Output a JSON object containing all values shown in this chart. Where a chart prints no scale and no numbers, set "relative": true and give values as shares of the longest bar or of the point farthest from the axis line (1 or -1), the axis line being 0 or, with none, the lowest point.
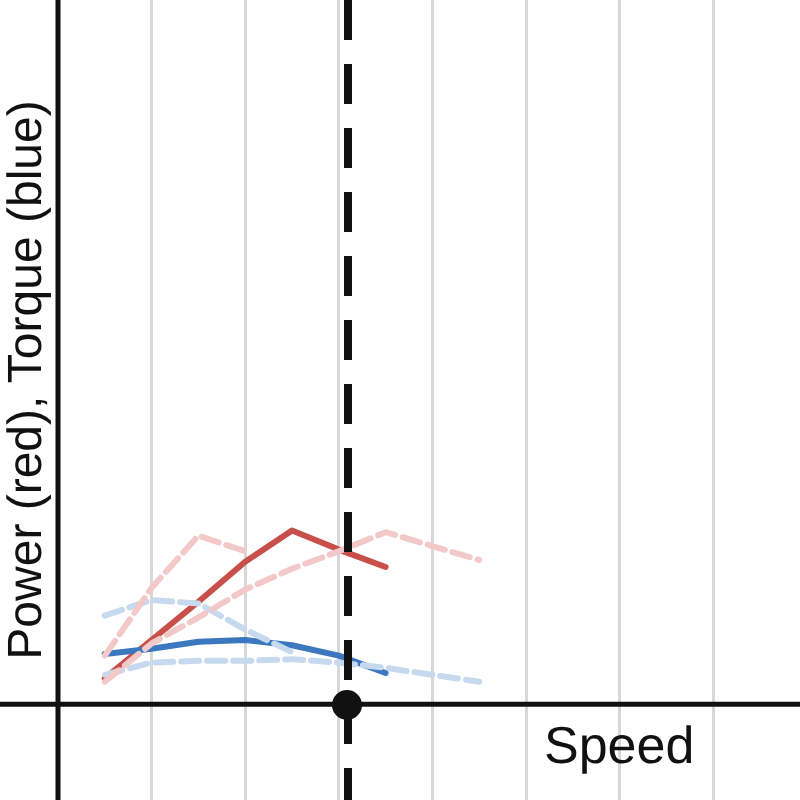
{
  "chart_data": {
    "type": "line",
    "relative": true,
    "xlabel": "Speed",
    "ylabel": "Power (red), Torque (blue)",
    "categories": [
      null,
      null,
      null,
      null,
      null,
      null,
      null,
      null,
      null,
      null,
      null,
      null,
      null,
      null,
      null,
      null
    ],
    "grid": "x",
    "legend": false,
    "marker": "none",
    "series": [
      {
        "color": "#f2c9c8",
        "line_style": "dashed",
        "values": [
          null,
          0.28,
          0.67,
          0.97,
          0.88,
          null,
          null,
          null,
          null,
          null,
          null,
          null,
          null,
          null,
          null,
          null
        ]
      },
      {
        "color": "#f2c9c8",
        "line_style": "dashed",
        "values": [
          null,
          0.13,
          0.35,
          0.5,
          0.66,
          0.78,
          0.88,
          0.99,
          0.91,
          0.83,
          null,
          null,
          null,
          null,
          null,
          null
        ]
      },
      {
        "color": "#c6d9ee",
        "line_style": "dashed",
        "values": [
          null,
          0.51,
          0.6,
          0.58,
          0.43,
          0.3,
          null,
          null,
          null,
          null,
          null,
          null,
          null,
          null,
          null,
          null
        ]
      },
      {
        "color": "#c6d9ee",
        "line_style": "dashed",
        "values": [
          null,
          0.17,
          0.24,
          0.25,
          0.25,
          0.26,
          0.24,
          0.21,
          0.17,
          0.13,
          null,
          null,
          null,
          null,
          null,
          null
        ]
      },
      {
        "color": "#3b78c0",
        "line_style": "solid",
        "values": [
          null,
          0.29,
          0.32,
          0.36,
          0.37,
          0.34,
          0.28,
          0.18,
          null,
          null,
          null,
          null,
          null,
          null,
          null,
          null
        ]
      },
      {
        "color": "#c84f4a",
        "line_style": "solid",
        "values": [
          null,
          0.15,
          0.37,
          0.59,
          0.82,
          1,
          0.89,
          0.79,
          null,
          null,
          null,
          null,
          null,
          null,
          null,
          null
        ]
      }
    ]
  }
}
